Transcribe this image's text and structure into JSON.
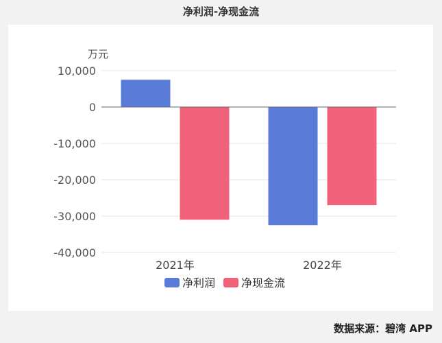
{
  "chart_data": {
    "type": "bar",
    "title": "净利润-净现金流",
    "unit_label": "万元",
    "categories": [
      "2021年",
      "2022年"
    ],
    "series": [
      {
        "name": "净利润",
        "values": [
          7500,
          -32500
        ],
        "color": "#5b7bd8"
      },
      {
        "name": "净现金流",
        "values": [
          -31000,
          -27000
        ],
        "color": "#f0627a"
      }
    ],
    "ylim": [
      -40000,
      10000
    ],
    "yticks": [
      10000,
      0,
      -10000,
      -20000,
      -30000,
      -40000
    ],
    "ytick_labels": [
      "10,000",
      "0",
      "-10,000",
      "-20,000",
      "-30,000",
      "-40,000"
    ],
    "grid": true,
    "legend": "bottom"
  },
  "source": "数据来源：碧湾 APP"
}
